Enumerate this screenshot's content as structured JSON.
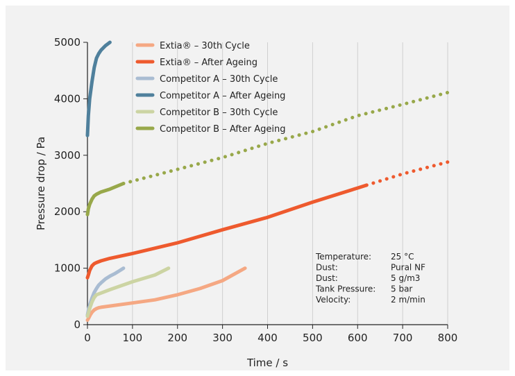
{
  "chart_data": {
    "type": "line",
    "title": "",
    "xlabel": "Time / s",
    "ylabel": "Pressure drop / Pa",
    "xlim": [
      0,
      800
    ],
    "ylim": [
      0,
      5000
    ],
    "xticks": [
      0,
      100,
      200,
      300,
      400,
      500,
      600,
      700,
      800
    ],
    "yticks": [
      0,
      1000,
      2000,
      3000,
      4000,
      5000
    ],
    "grid": "vertical",
    "legend_position": "top-left",
    "series": [
      {
        "name": "Extia® – 30th Cycle",
        "color": "#f5a883",
        "solid": [
          [
            0,
            80
          ],
          [
            3,
            120
          ],
          [
            6,
            170
          ],
          [
            10,
            220
          ],
          [
            15,
            260
          ],
          [
            20,
            285
          ],
          [
            25,
            300
          ],
          [
            30,
            308
          ],
          [
            50,
            330
          ],
          [
            100,
            385
          ],
          [
            150,
            440
          ],
          [
            200,
            530
          ],
          [
            250,
            640
          ],
          [
            300,
            780
          ],
          [
            350,
            1000
          ]
        ],
        "dotted": []
      },
      {
        "name": "Extia® – After Ageing",
        "color": "#ee5a2e",
        "solid": [
          [
            0,
            830
          ],
          [
            2,
            880
          ],
          [
            5,
            960
          ],
          [
            10,
            1040
          ],
          [
            15,
            1080
          ],
          [
            20,
            1100
          ],
          [
            30,
            1130
          ],
          [
            50,
            1175
          ],
          [
            100,
            1260
          ],
          [
            200,
            1450
          ],
          [
            300,
            1680
          ],
          [
            400,
            1900
          ],
          [
            500,
            2170
          ],
          [
            600,
            2420
          ],
          [
            620,
            2470
          ]
        ],
        "dotted": [
          [
            620,
            2470
          ],
          [
            700,
            2670
          ],
          [
            800,
            2880
          ]
        ]
      },
      {
        "name": "Competitor A – 30th Cycle",
        "color": "#a9bcd2",
        "solid": [
          [
            0,
            170
          ],
          [
            2,
            250
          ],
          [
            5,
            350
          ],
          [
            10,
            470
          ],
          [
            15,
            570
          ],
          [
            20,
            640
          ],
          [
            25,
            700
          ],
          [
            30,
            740
          ],
          [
            40,
            810
          ],
          [
            50,
            860
          ],
          [
            60,
            900
          ],
          [
            70,
            950
          ],
          [
            80,
            1000
          ]
        ],
        "dotted": []
      },
      {
        "name": "Competitor A – After Ageing",
        "color": "#4f809c",
        "solid": [
          [
            0,
            3350
          ],
          [
            2,
            3700
          ],
          [
            5,
            4000
          ],
          [
            10,
            4300
          ],
          [
            15,
            4550
          ],
          [
            20,
            4720
          ],
          [
            25,
            4800
          ],
          [
            30,
            4860
          ],
          [
            40,
            4940
          ],
          [
            50,
            5000
          ]
        ],
        "dotted": []
      },
      {
        "name": "Competitor B – 30th Cycle",
        "color": "#ccd4a3",
        "solid": [
          [
            0,
            150
          ],
          [
            3,
            230
          ],
          [
            6,
            310
          ],
          [
            10,
            400
          ],
          [
            15,
            480
          ],
          [
            20,
            530
          ],
          [
            30,
            560
          ],
          [
            50,
            620
          ],
          [
            100,
            760
          ],
          [
            150,
            880
          ],
          [
            180,
            1000
          ]
        ],
        "dotted": []
      },
      {
        "name": "Competitor B – After Ageing",
        "color": "#98a84a",
        "solid": [
          [
            0,
            1950
          ],
          [
            2,
            2050
          ],
          [
            5,
            2130
          ],
          [
            10,
            2220
          ],
          [
            15,
            2280
          ],
          [
            20,
            2310
          ],
          [
            30,
            2350
          ],
          [
            50,
            2400
          ],
          [
            80,
            2500
          ]
        ],
        "dotted": [
          [
            80,
            2500
          ],
          [
            200,
            2750
          ],
          [
            300,
            2960
          ],
          [
            400,
            3210
          ],
          [
            500,
            3420
          ],
          [
            600,
            3700
          ],
          [
            700,
            3900
          ],
          [
            800,
            4110
          ]
        ]
      }
    ],
    "annotations": [
      {
        "label": "Temperature:",
        "value": "25 °C"
      },
      {
        "label": "Dust:",
        "value": "Pural NF"
      },
      {
        "label": "Dust:",
        "value": "5 g/m3"
      },
      {
        "label": "Tank Pressure:",
        "value": "5 bar"
      },
      {
        "label": "Velocity:",
        "value": "2 m/min"
      }
    ]
  }
}
